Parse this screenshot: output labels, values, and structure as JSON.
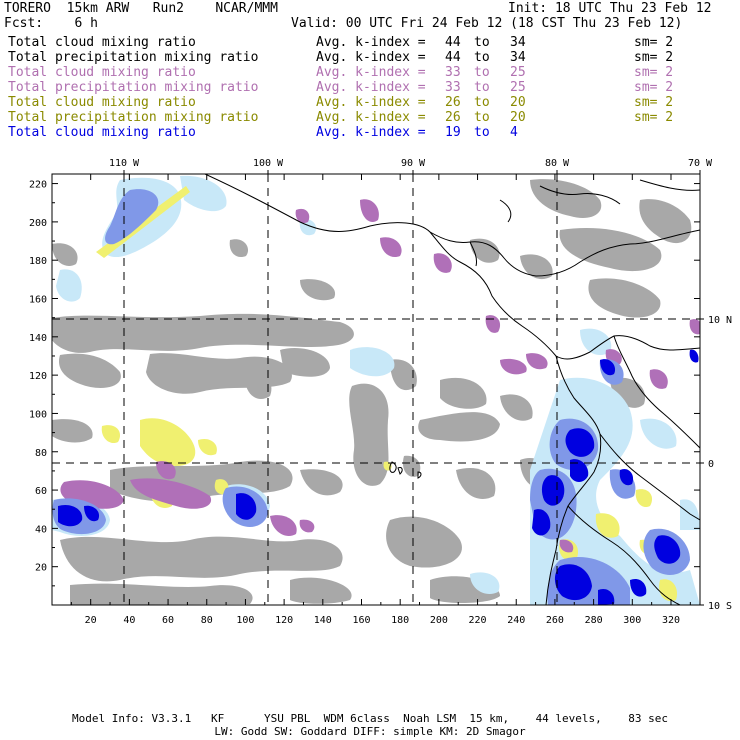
{
  "header": {
    "model": "TORERO  15km ARW   Run2    NCAR/MMM",
    "init": "Init: 18 UTC Thu 23 Feb 12",
    "fcst": "Fcst:    6 h",
    "valid": "Valid: 00 UTC Fri 24 Feb 12 (18 CST Thu 23 Feb 12)"
  },
  "legend": [
    {
      "field": "Total cloud mixing ratio",
      "kindex_label": "Avg. k-index =",
      "k_from": "44",
      "to": "to",
      "k_to": "34",
      "sm": "sm= 2",
      "color": "#000000"
    },
    {
      "field": "Total precipitation mixing ratio",
      "kindex_label": "Avg. k-index =",
      "k_from": "44",
      "to": "to",
      "k_to": "34",
      "sm": "sm= 2",
      "color": "#000000"
    },
    {
      "field": "Total cloud mixing ratio",
      "kindex_label": "Avg. k-index =",
      "k_from": "33",
      "to": "to",
      "k_to": "25",
      "sm": "sm= 2",
      "color": "#b070b0"
    },
    {
      "field": "Total precipitation mixing ratio",
      "kindex_label": "Avg. k-index =",
      "k_from": "33",
      "to": "to",
      "k_to": "25",
      "sm": "sm= 2",
      "color": "#b070b0"
    },
    {
      "field": "Total cloud mixing ratio",
      "kindex_label": "Avg. k-index =",
      "k_from": "26",
      "to": "to",
      "k_to": "20",
      "sm": "sm= 2",
      "color": "#8a8a00"
    },
    {
      "field": "Total precipitation mixing ratio",
      "kindex_label": "Avg. k-index =",
      "k_from": "26",
      "to": "to",
      "k_to": "20",
      "sm": "sm= 2",
      "color": "#8a8a00"
    },
    {
      "field": "Total cloud mixing ratio",
      "kindex_label": "Avg. k-index =",
      "k_from": "19",
      "to": "to",
      "k_to": "4",
      "sm": "",
      "color": "#0000e0"
    }
  ],
  "map": {
    "lon_labels": [
      "110 W",
      "100 W",
      "90 W",
      "80 W",
      "70 W"
    ],
    "lat_labels": [
      "10 N",
      "0",
      "10 S"
    ],
    "x_ticks": [
      "20",
      "40",
      "60",
      "80",
      "100",
      "120",
      "140",
      "160",
      "180",
      "200",
      "220",
      "240",
      "260",
      "280",
      "300",
      "320"
    ],
    "y_ticks": [
      "20",
      "40",
      "60",
      "80",
      "100",
      "120",
      "140",
      "160",
      "180",
      "200",
      "220"
    ],
    "colors": {
      "gray": "#a8a8a8",
      "purple": "#b070b8",
      "yellow": "#f0f070",
      "lightblue": "#c8e8f8",
      "medblue": "#8098e8",
      "blue": "#0000e0",
      "coast": "#000000"
    }
  },
  "footer": {
    "line1": "Model Info: V3.3.1   KF      YSU PBL  WDM 6class  Noah LSM  15 km,    44 levels,    83 sec",
    "line2": "LW: Godd SW: Goddard DIFF: simple KM: 2D Smagor"
  }
}
